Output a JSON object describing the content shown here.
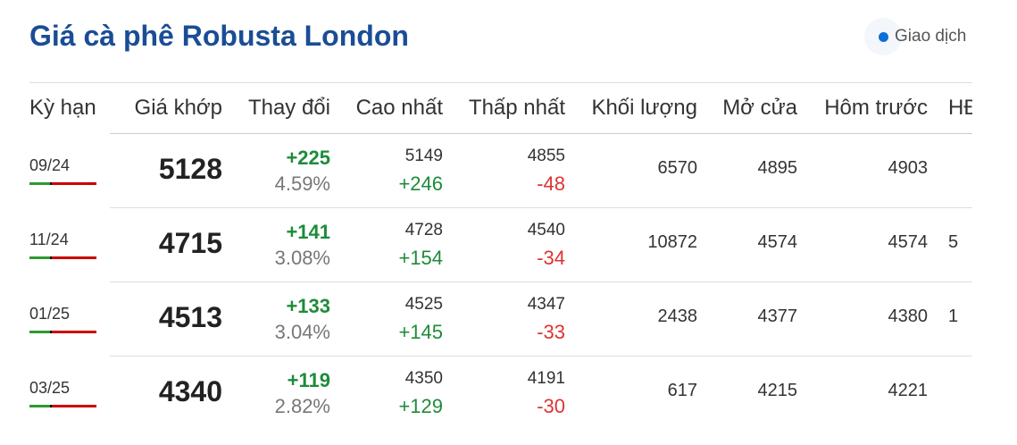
{
  "title": "Giá cà phê Robusta London",
  "badge": {
    "label": "Giao dịch",
    "dot_color": "#0b6fd6"
  },
  "headers": [
    "Kỳ hạn",
    "Giá khớp",
    "Thay đổi",
    "Cao nhất",
    "Thấp nhất",
    "Khối lượng",
    "Mở cửa",
    "Hôm trước",
    "HĐ"
  ],
  "rows": [
    {
      "term": "09/24",
      "price": "5128",
      "change": "+225",
      "pct": "4.59%",
      "high": "5149",
      "high_diff": "+246",
      "low": "4855",
      "low_diff": "-48",
      "volume": "6570",
      "open": "4895",
      "prev": "4903",
      "oi": ""
    },
    {
      "term": "11/24",
      "price": "4715",
      "change": "+141",
      "pct": "3.08%",
      "high": "4728",
      "high_diff": "+154",
      "low": "4540",
      "low_diff": "-34",
      "volume": "10872",
      "open": "4574",
      "prev": "4574",
      "oi": "5"
    },
    {
      "term": "01/25",
      "price": "4513",
      "change": "+133",
      "pct": "3.04%",
      "high": "4525",
      "high_diff": "+145",
      "low": "4347",
      "low_diff": "-33",
      "volume": "2438",
      "open": "4377",
      "prev": "4380",
      "oi": "1"
    },
    {
      "term": "03/25",
      "price": "4340",
      "change": "+119",
      "pct": "2.82%",
      "high": "4350",
      "high_diff": "+129",
      "low": "4191",
      "low_diff": "-30",
      "volume": "617",
      "open": "4215",
      "prev": "4221",
      "oi": ""
    }
  ],
  "colors": {
    "title": "#1a4d96",
    "up": "#1e8b3a",
    "down": "#d33"
  }
}
